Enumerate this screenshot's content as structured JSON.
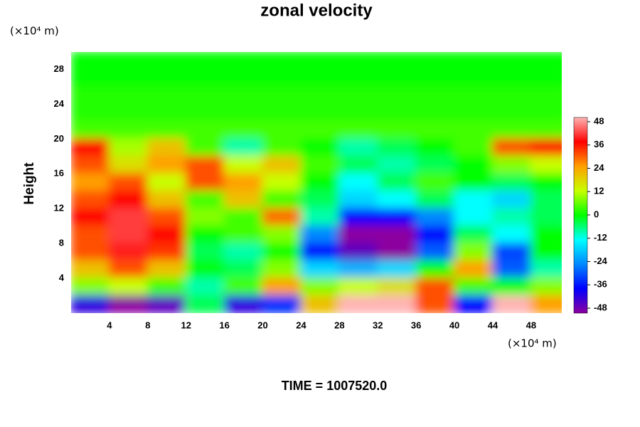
{
  "chart_data": {
    "type": "heatmap",
    "title": "zonal velocity",
    "y_label": "Height",
    "y_unit": "(×10⁴ m)",
    "x_unit": "(×10⁴ m)",
    "footer": "TIME = 1007520.0",
    "x": [
      2,
      6,
      10,
      14,
      18,
      22,
      26,
      30,
      34,
      38,
      42,
      46,
      50
    ],
    "y": [
      29,
      27,
      25,
      23,
      21,
      19,
      17,
      15,
      13,
      11,
      9,
      7,
      5,
      3,
      1
    ],
    "z": [
      [
        0,
        0,
        0,
        0,
        0,
        0,
        0,
        0,
        0,
        0,
        0,
        0,
        0
      ],
      [
        0,
        0,
        0,
        0,
        0,
        0,
        0,
        0,
        0,
        0,
        0,
        0,
        0
      ],
      [
        2,
        2,
        2,
        2,
        2,
        2,
        2,
        2,
        2,
        2,
        2,
        2,
        2
      ],
      [
        2,
        2,
        2,
        2,
        2,
        2,
        2,
        2,
        2,
        2,
        2,
        2,
        2
      ],
      [
        4,
        4,
        4,
        4,
        4,
        4,
        4,
        4,
        4,
        4,
        4,
        4,
        4
      ],
      [
        36,
        10,
        20,
        4,
        -8,
        4,
        0,
        -8,
        -4,
        0,
        4,
        30,
        36
      ],
      [
        30,
        16,
        24,
        30,
        12,
        20,
        4,
        -4,
        -8,
        -4,
        0,
        8,
        12
      ],
      [
        24,
        30,
        12,
        30,
        24,
        12,
        0,
        -12,
        -4,
        4,
        0,
        -4,
        0
      ],
      [
        30,
        36,
        20,
        4,
        20,
        4,
        -4,
        -16,
        -12,
        -4,
        -12,
        -16,
        -4
      ],
      [
        36,
        40,
        30,
        8,
        4,
        28,
        -8,
        -36,
        -36,
        -24,
        -12,
        -8,
        -4
      ],
      [
        30,
        40,
        36,
        0,
        4,
        8,
        -24,
        -48,
        -48,
        -36,
        -4,
        -12,
        0
      ],
      [
        30,
        38,
        32,
        -4,
        -8,
        0,
        -36,
        -44,
        -48,
        -28,
        8,
        -30,
        0
      ],
      [
        20,
        30,
        20,
        0,
        -4,
        8,
        -16,
        -20,
        -16,
        0,
        24,
        -28,
        -8
      ],
      [
        8,
        12,
        4,
        -8,
        4,
        24,
        8,
        12,
        16,
        30,
        4,
        0,
        8
      ],
      [
        -40,
        -48,
        -44,
        -4,
        -40,
        -32,
        20,
        48,
        48,
        30,
        -36,
        48,
        24
      ]
    ],
    "xlim": [
      0,
      51.2
    ],
    "ylim": [
      0,
      30
    ],
    "xticks": [
      4,
      8,
      12,
      16,
      20,
      24,
      28,
      32,
      36,
      40,
      44,
      48
    ],
    "yticks": [
      4,
      8,
      12,
      16,
      20,
      24,
      28
    ],
    "zlim": [
      -48,
      48
    ],
    "colorbar_ticks": [
      48,
      36,
      24,
      12,
      0,
      -12,
      -24,
      -36,
      -48
    ],
    "colorscale": [
      "#8c00a0",
      "#0000ff",
      "#0088ff",
      "#00ffff",
      "#00ff00",
      "#c8ff00",
      "#ffa000",
      "#ff0000",
      "#ffb4b4"
    ]
  }
}
